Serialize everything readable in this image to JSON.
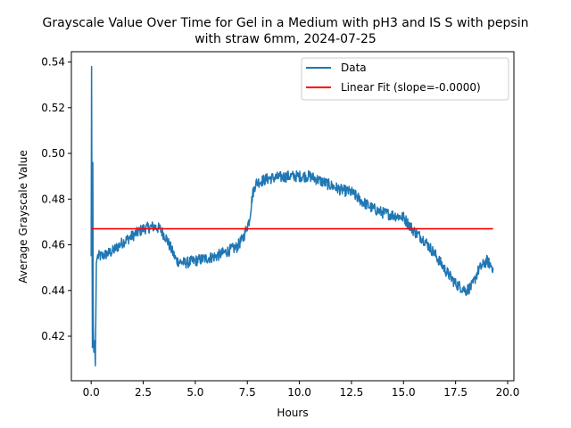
{
  "chart_data": {
    "type": "line",
    "title_line1": "Grayscale Value Over Time for Gel in a Medium with pH3 and IS S with pepsin",
    "title_line2": "with straw 6mm, 2024-07-25",
    "xlabel": "Hours",
    "ylabel": "Average Grayscale Value",
    "xlim": [
      -0.95,
      20.3
    ],
    "ylim": [
      0.4005,
      0.5445
    ],
    "x_ticks": [
      {
        "value": 0.0,
        "label": "0.0"
      },
      {
        "value": 2.5,
        "label": "2.5"
      },
      {
        "value": 5.0,
        "label": "5.0"
      },
      {
        "value": 7.5,
        "label": "7.5"
      },
      {
        "value": 10.0,
        "label": "10.0"
      },
      {
        "value": 12.5,
        "label": "12.5"
      },
      {
        "value": 15.0,
        "label": "15.0"
      },
      {
        "value": 17.5,
        "label": "17.5"
      },
      {
        "value": 20.0,
        "label": "20.0"
      }
    ],
    "y_ticks": [
      {
        "value": 0.42,
        "label": "0.42"
      },
      {
        "value": 0.44,
        "label": "0.44"
      },
      {
        "value": 0.46,
        "label": "0.46"
      },
      {
        "value": 0.48,
        "label": "0.48"
      },
      {
        "value": 0.5,
        "label": "0.50"
      },
      {
        "value": 0.52,
        "label": "0.52"
      },
      {
        "value": 0.54,
        "label": "0.54"
      }
    ],
    "grid": false,
    "legend_position": "top-right",
    "series": [
      {
        "name": "Data",
        "color": "#1f77b4",
        "noise": 0.0025,
        "points": [
          [
            0.0,
            0.455
          ],
          [
            0.02,
            0.538
          ],
          [
            0.04,
            0.47
          ],
          [
            0.06,
            0.415
          ],
          [
            0.08,
            0.496
          ],
          [
            0.1,
            0.425
          ],
          [
            0.13,
            0.413
          ],
          [
            0.17,
            0.418
          ],
          [
            0.2,
            0.407
          ],
          [
            0.25,
            0.452
          ],
          [
            0.3,
            0.455
          ],
          [
            0.5,
            0.455
          ],
          [
            1.0,
            0.457
          ],
          [
            1.5,
            0.461
          ],
          [
            2.0,
            0.464
          ],
          [
            2.5,
            0.467
          ],
          [
            3.0,
            0.468
          ],
          [
            3.3,
            0.467
          ],
          [
            3.6,
            0.463
          ],
          [
            3.9,
            0.457
          ],
          [
            4.1,
            0.453
          ],
          [
            4.5,
            0.452
          ],
          [
            5.0,
            0.453
          ],
          [
            5.5,
            0.454
          ],
          [
            6.0,
            0.455
          ],
          [
            6.5,
            0.457
          ],
          [
            7.0,
            0.459
          ],
          [
            7.3,
            0.463
          ],
          [
            7.6,
            0.471
          ],
          [
            7.75,
            0.482
          ],
          [
            7.9,
            0.487
          ],
          [
            8.5,
            0.489
          ],
          [
            9.5,
            0.49
          ],
          [
            10.5,
            0.49
          ],
          [
            11.0,
            0.488
          ],
          [
            11.5,
            0.486
          ],
          [
            12.0,
            0.484
          ],
          [
            12.5,
            0.483
          ],
          [
            13.0,
            0.479
          ],
          [
            13.5,
            0.476
          ],
          [
            14.0,
            0.474
          ],
          [
            14.5,
            0.473
          ],
          [
            15.0,
            0.472
          ],
          [
            15.5,
            0.466
          ],
          [
            16.0,
            0.462
          ],
          [
            16.5,
            0.456
          ],
          [
            17.0,
            0.449
          ],
          [
            17.5,
            0.443
          ],
          [
            18.0,
            0.44
          ],
          [
            18.3,
            0.442
          ],
          [
            18.6,
            0.449
          ],
          [
            19.0,
            0.453
          ],
          [
            19.3,
            0.45
          ]
        ]
      },
      {
        "name": "Linear Fit (slope=-0.0000)",
        "color": "#ff0000",
        "points": [
          [
            0.0,
            0.467
          ],
          [
            19.3,
            0.467
          ]
        ]
      }
    ]
  }
}
